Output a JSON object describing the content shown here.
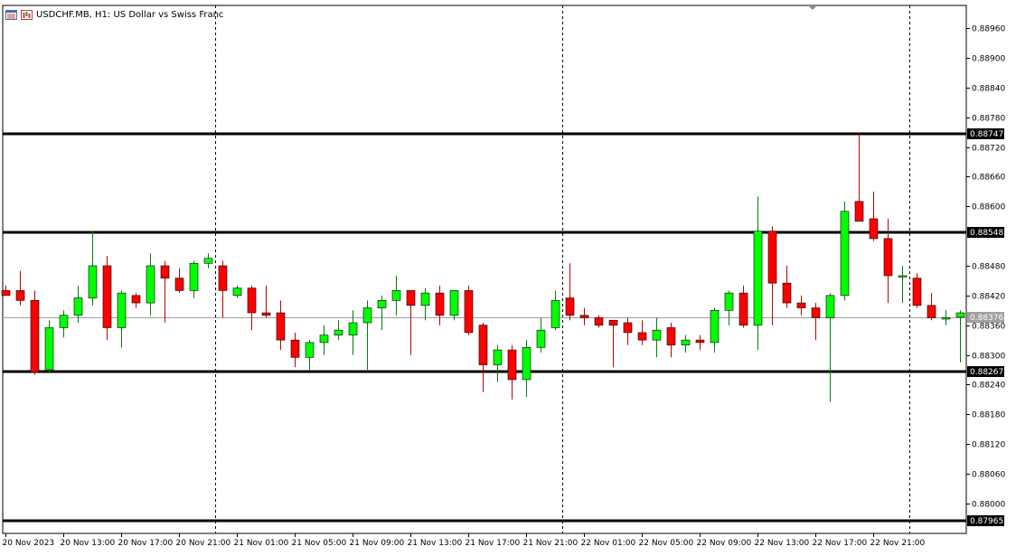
{
  "chart_data": {
    "type": "candlestick",
    "title": "USDCHF.MB, H1:  US Dollar vs Swiss Franc",
    "symbol": "USDCHF.MB",
    "timeframe": "H1",
    "ylim": [
      0.87965,
      0.88995
    ],
    "y_ticks": [
      "0.88960",
      "0.88900",
      "0.88840",
      "0.88780",
      "0.88720",
      "0.88660",
      "0.88600",
      "0.88480",
      "0.88420",
      "0.88360",
      "0.88300",
      "0.88240",
      "0.88180",
      "0.88120",
      "0.88060",
      "0.88000"
    ],
    "x_ticks": [
      {
        "label": "20 Nov 2023",
        "bar": 0
      },
      {
        "label": "20 Nov 13:00",
        "bar": 4
      },
      {
        "label": "20 Nov 17:00",
        "bar": 8
      },
      {
        "label": "20 Nov 21:00",
        "bar": 12
      },
      {
        "label": "21 Nov 01:00",
        "bar": 16
      },
      {
        "label": "21 Nov 05:00",
        "bar": 20
      },
      {
        "label": "21 Nov 09:00",
        "bar": 24
      },
      {
        "label": "21 Nov 13:00",
        "bar": 28
      },
      {
        "label": "21 Nov 17:00",
        "bar": 32
      },
      {
        "label": "21 Nov 21:00",
        "bar": 36
      },
      {
        "label": "22 Nov 01:00",
        "bar": 40
      },
      {
        "label": "22 Nov 05:00",
        "bar": 44
      },
      {
        "label": "22 Nov 09:00",
        "bar": 48
      },
      {
        "label": "22 Nov 13:00",
        "bar": 52
      },
      {
        "label": "22 Nov 17:00",
        "bar": 56
      },
      {
        "label": "22 Nov 21:00",
        "bar": 60
      }
    ],
    "horizontal_lines": [
      {
        "value": 0.88747,
        "label": "0.88747"
      },
      {
        "value": 0.88548,
        "label": "0.88548"
      },
      {
        "value": 0.88267,
        "label": "0.88267"
      },
      {
        "value": 0.87965,
        "label": "0.87965"
      }
    ],
    "current_price": {
      "value": 0.88376,
      "label": "0.88376"
    },
    "vertical_separators": [
      14.5,
      38.5,
      62.5
    ],
    "candles": [
      {
        "o": 0.8843,
        "h": 0.8844,
        "l": 0.8842,
        "c": 0.8842
      },
      {
        "o": 0.8843,
        "h": 0.8847,
        "l": 0.884,
        "c": 0.8841
      },
      {
        "o": 0.8841,
        "h": 0.8843,
        "l": 0.8826,
        "c": 0.88265
      },
      {
        "o": 0.8827,
        "h": 0.8837,
        "l": 0.88265,
        "c": 0.88355
      },
      {
        "o": 0.88355,
        "h": 0.8839,
        "l": 0.88335,
        "c": 0.8838
      },
      {
        "o": 0.8838,
        "h": 0.8844,
        "l": 0.88365,
        "c": 0.88415
      },
      {
        "o": 0.88415,
        "h": 0.8855,
        "l": 0.884,
        "c": 0.8848
      },
      {
        "o": 0.8848,
        "h": 0.885,
        "l": 0.8833,
        "c": 0.88355
      },
      {
        "o": 0.88355,
        "h": 0.8843,
        "l": 0.88315,
        "c": 0.88425
      },
      {
        "o": 0.8842,
        "h": 0.88425,
        "l": 0.88395,
        "c": 0.88405
      },
      {
        "o": 0.88405,
        "h": 0.88505,
        "l": 0.8838,
        "c": 0.8848
      },
      {
        "o": 0.8848,
        "h": 0.8849,
        "l": 0.88365,
        "c": 0.88455
      },
      {
        "o": 0.88455,
        "h": 0.88475,
        "l": 0.88425,
        "c": 0.8843
      },
      {
        "o": 0.8843,
        "h": 0.8849,
        "l": 0.88415,
        "c": 0.88485
      },
      {
        "o": 0.88485,
        "h": 0.88505,
        "l": 0.88475,
        "c": 0.88495
      },
      {
        "o": 0.8848,
        "h": 0.8849,
        "l": 0.88375,
        "c": 0.8843
      },
      {
        "o": 0.8842,
        "h": 0.8844,
        "l": 0.88415,
        "c": 0.88435
      },
      {
        "o": 0.88435,
        "h": 0.8844,
        "l": 0.8835,
        "c": 0.88385
      },
      {
        "o": 0.88385,
        "h": 0.8844,
        "l": 0.88375,
        "c": 0.8838
      },
      {
        "o": 0.88385,
        "h": 0.8841,
        "l": 0.8831,
        "c": 0.8833
      },
      {
        "o": 0.8833,
        "h": 0.88345,
        "l": 0.88275,
        "c": 0.88295
      },
      {
        "o": 0.88295,
        "h": 0.8833,
        "l": 0.8827,
        "c": 0.88325
      },
      {
        "o": 0.88325,
        "h": 0.8836,
        "l": 0.883,
        "c": 0.8834
      },
      {
        "o": 0.8834,
        "h": 0.8837,
        "l": 0.8833,
        "c": 0.8835
      },
      {
        "o": 0.8834,
        "h": 0.8839,
        "l": 0.883,
        "c": 0.88365
      },
      {
        "o": 0.88365,
        "h": 0.8841,
        "l": 0.8827,
        "c": 0.88395
      },
      {
        "o": 0.88395,
        "h": 0.8842,
        "l": 0.8835,
        "c": 0.8841
      },
      {
        "o": 0.8841,
        "h": 0.8846,
        "l": 0.8838,
        "c": 0.8843
      },
      {
        "o": 0.8843,
        "h": 0.8843,
        "l": 0.883,
        "c": 0.884
      },
      {
        "o": 0.884,
        "h": 0.88435,
        "l": 0.8837,
        "c": 0.88425
      },
      {
        "o": 0.88425,
        "h": 0.8844,
        "l": 0.8836,
        "c": 0.8838
      },
      {
        "o": 0.8838,
        "h": 0.8843,
        "l": 0.8837,
        "c": 0.8843
      },
      {
        "o": 0.8843,
        "h": 0.8844,
        "l": 0.8834,
        "c": 0.88345
      },
      {
        "o": 0.8836,
        "h": 0.88365,
        "l": 0.88225,
        "c": 0.8828
      },
      {
        "o": 0.8828,
        "h": 0.8832,
        "l": 0.88245,
        "c": 0.8831
      },
      {
        "o": 0.8831,
        "h": 0.8832,
        "l": 0.8821,
        "c": 0.8825
      },
      {
        "o": 0.8825,
        "h": 0.8833,
        "l": 0.88215,
        "c": 0.88315
      },
      {
        "o": 0.88315,
        "h": 0.88375,
        "l": 0.88305,
        "c": 0.8835
      },
      {
        "o": 0.88355,
        "h": 0.8843,
        "l": 0.8835,
        "c": 0.8841
      },
      {
        "o": 0.88415,
        "h": 0.88485,
        "l": 0.8837,
        "c": 0.8838
      },
      {
        "o": 0.8838,
        "h": 0.88395,
        "l": 0.8836,
        "c": 0.88375
      },
      {
        "o": 0.88375,
        "h": 0.8838,
        "l": 0.88355,
        "c": 0.8836
      },
      {
        "o": 0.8837,
        "h": 0.8837,
        "l": 0.88275,
        "c": 0.8836
      },
      {
        "o": 0.88365,
        "h": 0.88375,
        "l": 0.8832,
        "c": 0.88345
      },
      {
        "o": 0.88345,
        "h": 0.8837,
        "l": 0.8832,
        "c": 0.8833
      },
      {
        "o": 0.8833,
        "h": 0.88375,
        "l": 0.88295,
        "c": 0.8835
      },
      {
        "o": 0.88355,
        "h": 0.88365,
        "l": 0.88295,
        "c": 0.8832
      },
      {
        "o": 0.8832,
        "h": 0.8834,
        "l": 0.88305,
        "c": 0.8833
      },
      {
        "o": 0.8833,
        "h": 0.8834,
        "l": 0.8831,
        "c": 0.88325
      },
      {
        "o": 0.88325,
        "h": 0.88395,
        "l": 0.88305,
        "c": 0.8839
      },
      {
        "o": 0.8839,
        "h": 0.8843,
        "l": 0.8836,
        "c": 0.88425
      },
      {
        "o": 0.88425,
        "h": 0.8844,
        "l": 0.88355,
        "c": 0.8836
      },
      {
        "o": 0.8836,
        "h": 0.8862,
        "l": 0.8831,
        "c": 0.8855
      },
      {
        "o": 0.8855,
        "h": 0.8856,
        "l": 0.8836,
        "c": 0.88445
      },
      {
        "o": 0.88445,
        "h": 0.8848,
        "l": 0.88395,
        "c": 0.88405
      },
      {
        "o": 0.88405,
        "h": 0.8842,
        "l": 0.8838,
        "c": 0.88395
      },
      {
        "o": 0.88395,
        "h": 0.88405,
        "l": 0.8833,
        "c": 0.88375
      },
      {
        "o": 0.88375,
        "h": 0.88425,
        "l": 0.88205,
        "c": 0.8842
      },
      {
        "o": 0.8842,
        "h": 0.8861,
        "l": 0.8841,
        "c": 0.8859
      },
      {
        "o": 0.8861,
        "h": 0.88747,
        "l": 0.8857,
        "c": 0.8857
      },
      {
        "o": 0.88575,
        "h": 0.8863,
        "l": 0.8853,
        "c": 0.88535
      },
      {
        "o": 0.88535,
        "h": 0.88575,
        "l": 0.88405,
        "c": 0.8846
      },
      {
        "o": 0.8846,
        "h": 0.8848,
        "l": 0.88405,
        "c": 0.8846
      },
      {
        "o": 0.88455,
        "h": 0.88465,
        "l": 0.88395,
        "c": 0.884
      },
      {
        "o": 0.884,
        "h": 0.88425,
        "l": 0.8837,
        "c": 0.88375
      },
      {
        "o": 0.88375,
        "h": 0.8839,
        "l": 0.8836,
        "c": 0.88375
      },
      {
        "o": 0.88376,
        "h": 0.8839,
        "l": 0.88285,
        "c": 0.88385
      }
    ]
  },
  "colors": {
    "bull": "#00ff00",
    "bear": "#ff0000",
    "wick_bull": "#008000",
    "wick_bear": "#c00000",
    "grid": "#000000",
    "level_line": "#000000",
    "price_line": "#a0a0a0",
    "axis_text": "#000000"
  }
}
